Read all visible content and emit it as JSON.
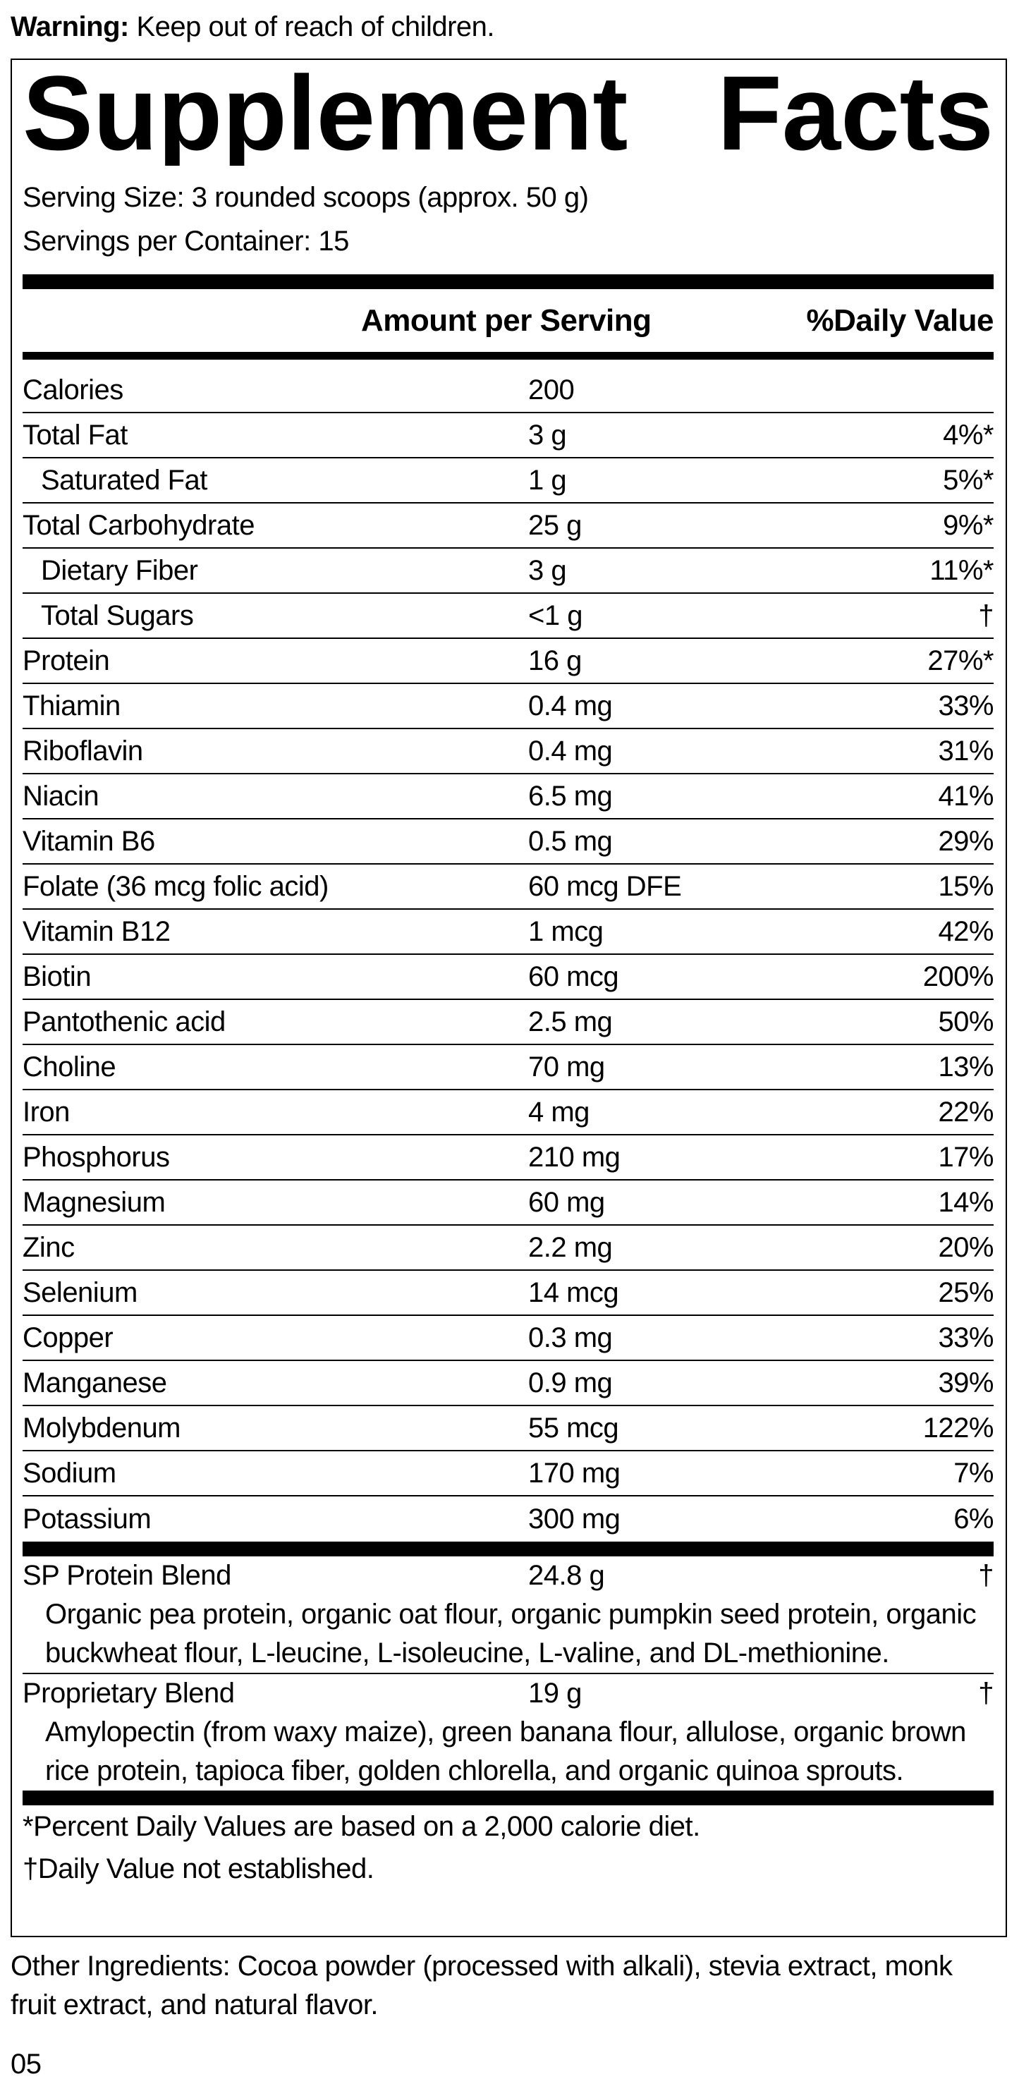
{
  "warning": {
    "label": "Warning:",
    "text": "Keep out of reach of children."
  },
  "title": "Supplement Facts",
  "serving_size": "Serving Size: 3 rounded scoops (approx. 50 g)",
  "servings_per_container": "Servings per Container: 15",
  "header": {
    "amount": "Amount per Serving",
    "dv": "%Daily Value"
  },
  "rows": [
    {
      "name": "Calories",
      "amount": "200",
      "dv": ""
    },
    {
      "name": "Total Fat",
      "amount": "3 g",
      "dv": "4%*",
      "sub": [
        {
          "name": "Saturated Fat",
          "amount": "1 g",
          "dv": "5%*"
        }
      ]
    },
    {
      "name": "Total Carbohydrate",
      "amount": "25 g",
      "dv": "9%*",
      "sub": [
        {
          "name": "Dietary Fiber",
          "amount": "3 g",
          "dv": "11%*"
        },
        {
          "name": "Total Sugars",
          "amount": "<1 g",
          "dv": "†"
        }
      ]
    },
    {
      "name": "Protein",
      "amount": "16 g",
      "dv": "27%*"
    },
    {
      "name": "Thiamin",
      "amount": "0.4 mg",
      "dv": "33%"
    },
    {
      "name": "Riboflavin",
      "amount": "0.4 mg",
      "dv": "31%"
    },
    {
      "name": "Niacin",
      "amount": "6.5 mg",
      "dv": "41%"
    },
    {
      "name": "Vitamin B6",
      "amount": "0.5 mg",
      "dv": "29%"
    },
    {
      "name": "Folate (36 mcg folic acid)",
      "amount": "60 mcg DFE",
      "dv": "15%"
    },
    {
      "name": "Vitamin B12",
      "amount": "1 mcg",
      "dv": "42%"
    },
    {
      "name": "Biotin",
      "amount": "60 mcg",
      "dv": "200%"
    },
    {
      "name": "Pantothenic acid",
      "amount": "2.5 mg",
      "dv": "50%"
    },
    {
      "name": "Choline",
      "amount": "70 mg",
      "dv": "13%"
    },
    {
      "name": "Iron",
      "amount": "4 mg",
      "dv": "22%"
    },
    {
      "name": "Phosphorus",
      "amount": "210 mg",
      "dv": "17%"
    },
    {
      "name": "Magnesium",
      "amount": "60 mg",
      "dv": "14%"
    },
    {
      "name": "Zinc",
      "amount": "2.2 mg",
      "dv": "20%"
    },
    {
      "name": "Selenium",
      "amount": "14 mcg",
      "dv": "25%"
    },
    {
      "name": "Copper",
      "amount": "0.3 mg",
      "dv": "33%"
    },
    {
      "name": "Manganese",
      "amount": "0.9 mg",
      "dv": "39%"
    },
    {
      "name": "Molybdenum",
      "amount": "55 mcg",
      "dv": "122%"
    },
    {
      "name": "Sodium",
      "amount": "170 mg",
      "dv": "7%"
    },
    {
      "name": "Potassium",
      "amount": "300 mg",
      "dv": "6%"
    }
  ],
  "blends": [
    {
      "name": "SP Protein Blend",
      "amount": "24.8 g",
      "dv": "†",
      "description": "Organic pea protein, organic oat flour, organic pumpkin seed protein, organic buckwheat flour, L-leucine, L-isoleucine, L-valine, and DL-methionine."
    },
    {
      "name": "Proprietary Blend",
      "amount": "19 g",
      "dv": "†",
      "description": "Amylopectin (from waxy maize), green banana flour, allulose, organic brown rice protein, tapioca fiber, golden chlorella, and organic quinoa sprouts."
    }
  ],
  "footnotes": [
    "*Percent Daily Values are based on a 2,000 calorie diet.",
    "†Daily Value not established."
  ],
  "other_ingredients": "Other Ingredients: Cocoa powder (processed with alkali), stevia extract, monk fruit extract, and natural flavor.",
  "code": "05"
}
